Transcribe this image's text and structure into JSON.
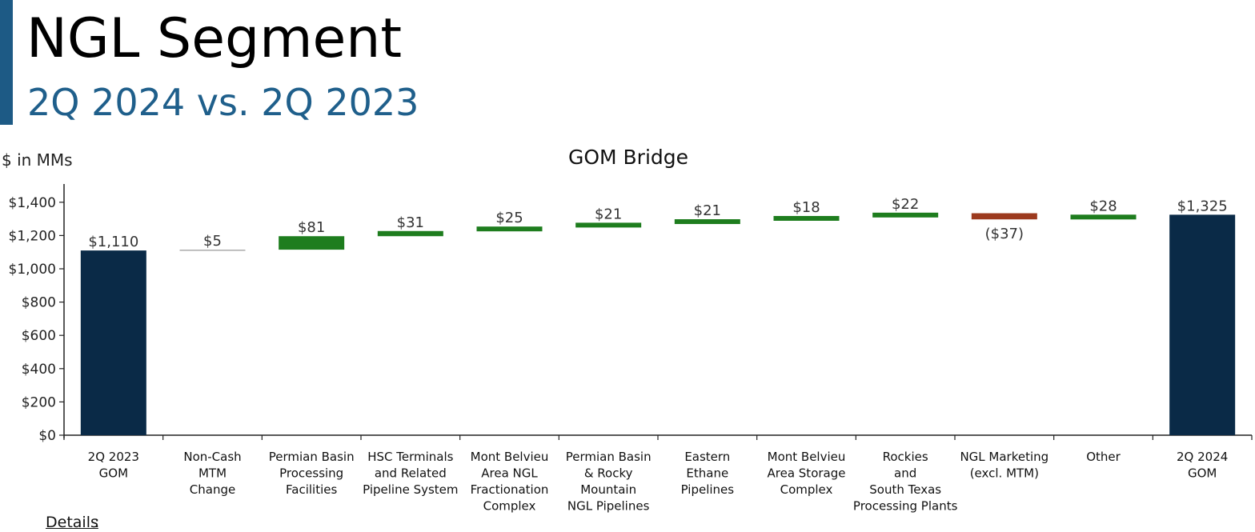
{
  "header": {
    "title": "NGL Segment",
    "subtitle": "2Q 2024 vs. 2Q 2023"
  },
  "units_label": "$ in MMs",
  "details_label": "Details",
  "details_colon": ":",
  "colors": {
    "accent": "#1d5a85",
    "total": "#0a2a47",
    "increase": "#1e7d1e",
    "decrease": "#9c3a1e",
    "minor": "#aaaaaa"
  },
  "chart_data": {
    "type": "bar",
    "subtype": "waterfall",
    "title": "GOM Bridge",
    "ylabel": "$ in MMs",
    "ylim": [
      0,
      1500
    ],
    "yticks": [
      0,
      200,
      400,
      600,
      800,
      1000,
      1200,
      1400
    ],
    "ytick_labels": [
      "$0",
      "$200",
      "$400",
      "$600",
      "$800",
      "$1,000",
      "$1,200",
      "$1,400"
    ],
    "grid": false,
    "categories": [
      [
        "2Q 2023",
        "GOM"
      ],
      [
        "Non-Cash",
        "MTM",
        "Change"
      ],
      [
        "Permian Basin",
        "Processing",
        "Facilities"
      ],
      [
        "HSC Terminals",
        "and Related",
        "Pipeline System"
      ],
      [
        "Mont Belvieu",
        "Area NGL",
        "Fractionation",
        "Complex"
      ],
      [
        "Permian Basin",
        "& Rocky",
        "Mountain",
        "NGL Pipelines"
      ],
      [
        "Eastern",
        "Ethane",
        "Pipelines"
      ],
      [
        "Mont Belvieu",
        "Area Storage",
        "Complex"
      ],
      [
        "Rockies",
        "and",
        "South Texas",
        "Processing Plants"
      ],
      [
        "NGL Marketing",
        "(excl. MTM)"
      ],
      [
        "Other"
      ],
      [
        "2Q 2024",
        "GOM"
      ]
    ],
    "values": [
      1110,
      5,
      81,
      31,
      25,
      21,
      21,
      18,
      22,
      -37,
      28,
      1325
    ],
    "kinds": [
      "total",
      "minor",
      "increase",
      "increase",
      "increase",
      "increase",
      "increase",
      "increase",
      "increase",
      "decrease",
      "increase",
      "total"
    ],
    "value_labels": [
      "$1,110",
      "$5",
      "$81",
      "$31",
      "$25",
      "$21",
      "$21",
      "$18",
      "$22",
      "($37)",
      "$28",
      "$1,325"
    ]
  }
}
